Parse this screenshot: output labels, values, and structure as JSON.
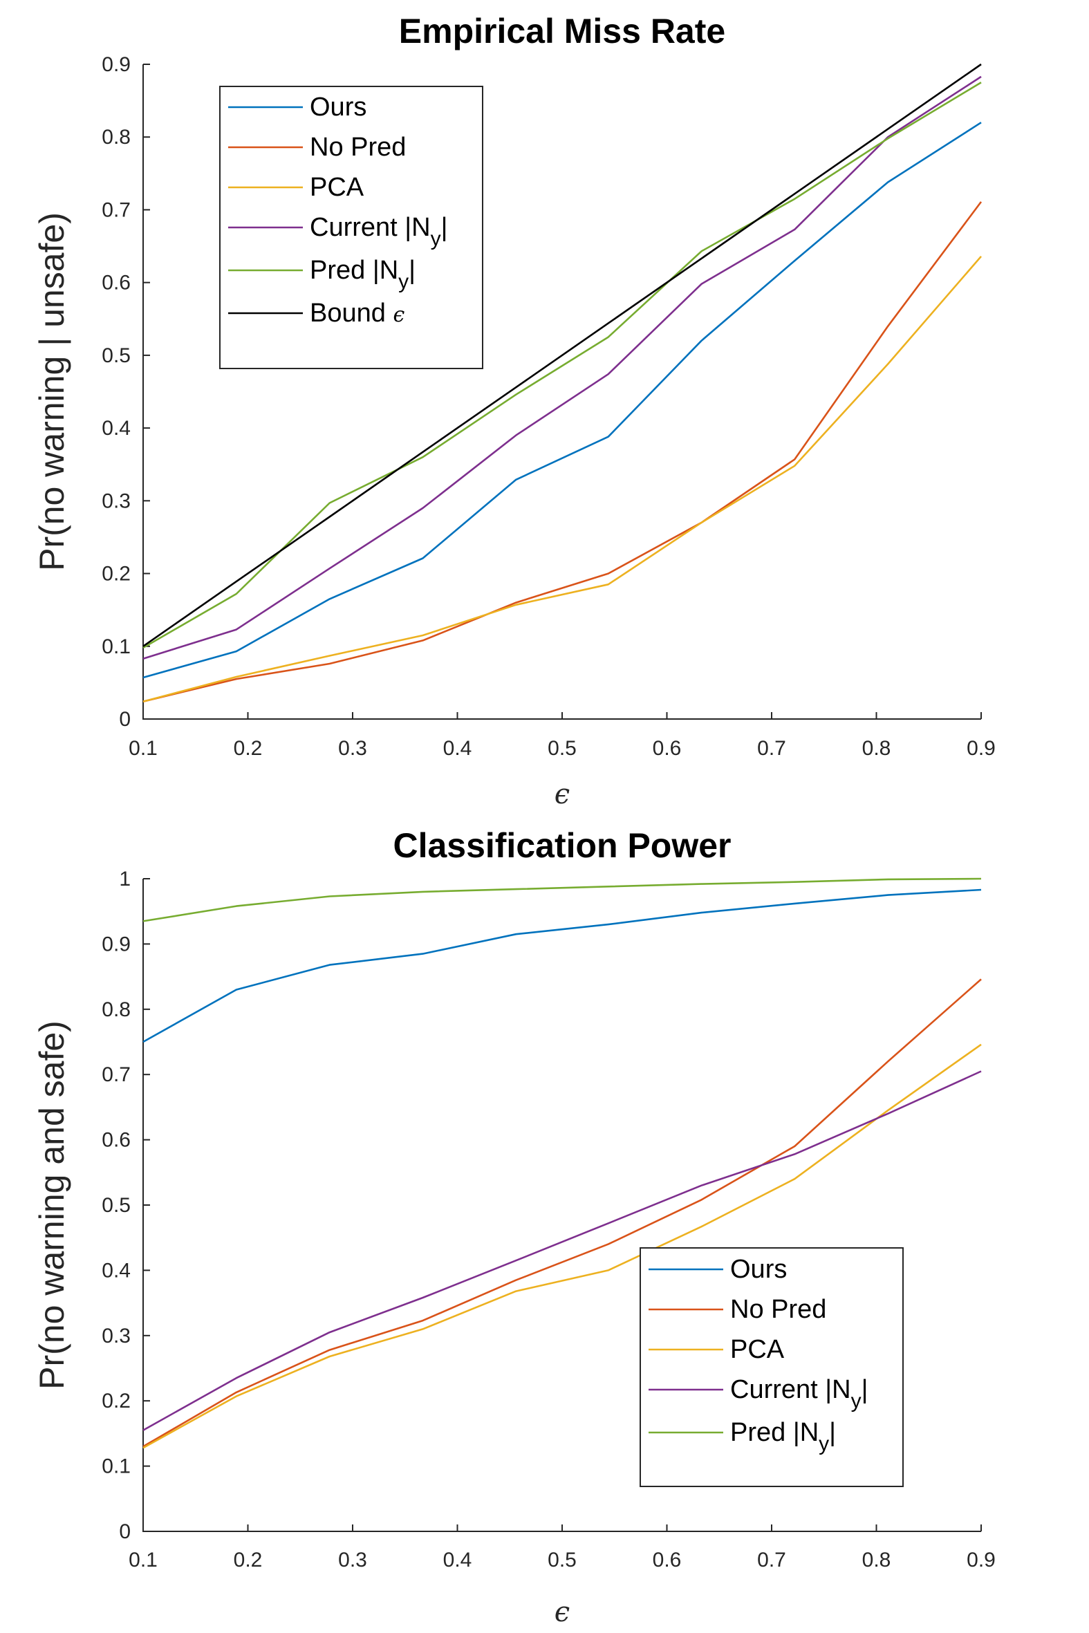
{
  "chart_data": [
    {
      "type": "line",
      "title": "Empirical Miss Rate",
      "xlabel": "ϵ",
      "ylabel": "Pr(no warning | unsafe)",
      "xlim": [
        0.1,
        0.9
      ],
      "ylim": [
        0,
        0.9
      ],
      "xticks": [
        "0.1",
        "0.2",
        "0.3",
        "0.4",
        "0.5",
        "0.6",
        "0.7",
        "0.8",
        "0.9"
      ],
      "yticks": [
        "0",
        "0.1",
        "0.2",
        "0.3",
        "0.4",
        "0.5",
        "0.6",
        "0.7",
        "0.8",
        "0.9"
      ],
      "legend_position": "top-left",
      "x": [
        0.1,
        0.189,
        0.278,
        0.367,
        0.456,
        0.544,
        0.633,
        0.722,
        0.811,
        0.9
      ],
      "series": [
        {
          "name": "Ours",
          "legend": {
            "main": "Ours"
          },
          "color": "#0072BD",
          "values": [
            0.057,
            0.093,
            0.165,
            0.221,
            0.329,
            0.388,
            0.52,
            0.63,
            0.738,
            0.82
          ]
        },
        {
          "name": "No Pred",
          "legend": {
            "main": "No Pred"
          },
          "color": "#D95319",
          "values": [
            0.024,
            0.055,
            0.076,
            0.108,
            0.16,
            0.2,
            0.27,
            0.357,
            0.54,
            0.711
          ]
        },
        {
          "name": "PCA",
          "legend": {
            "main": "PCA"
          },
          "color": "#EDB120",
          "values": [
            0.024,
            0.058,
            0.087,
            0.115,
            0.157,
            0.185,
            0.27,
            0.348,
            0.488,
            0.636
          ]
        },
        {
          "name": "Current |Ny|",
          "legend": {
            "main": "Current |N",
            "sub": "y",
            "end": "|"
          },
          "color": "#7E2F8E",
          "values": [
            0.083,
            0.123,
            0.207,
            0.29,
            0.39,
            0.474,
            0.598,
            0.673,
            0.8,
            0.883
          ]
        },
        {
          "name": "Pred |Ny|",
          "legend": {
            "main": "Pred |N",
            "sub": "y",
            "end": "|"
          },
          "color": "#77AC30",
          "values": [
            0.098,
            0.172,
            0.297,
            0.36,
            0.446,
            0.525,
            0.643,
            0.715,
            0.798,
            0.875
          ]
        },
        {
          "name": "Bound ϵ",
          "legend": {
            "main": "Bound ",
            "italic": "ϵ"
          },
          "color": "#000000",
          "values": [
            0.1,
            0.189,
            0.278,
            0.367,
            0.456,
            0.544,
            0.633,
            0.722,
            0.811,
            0.9
          ]
        }
      ]
    },
    {
      "type": "line",
      "title": "Classification Power",
      "xlabel": "ϵ",
      "ylabel": "Pr(no warning and safe)",
      "xlim": [
        0.1,
        0.9
      ],
      "ylim": [
        0,
        1
      ],
      "xticks": [
        "0.1",
        "0.2",
        "0.3",
        "0.4",
        "0.5",
        "0.6",
        "0.7",
        "0.8",
        "0.9"
      ],
      "yticks": [
        "0",
        "0.1",
        "0.2",
        "0.3",
        "0.4",
        "0.5",
        "0.6",
        "0.7",
        "0.8",
        "0.9",
        "1"
      ],
      "legend_position": "lower-right",
      "x": [
        0.1,
        0.189,
        0.278,
        0.367,
        0.456,
        0.544,
        0.633,
        0.722,
        0.811,
        0.9
      ],
      "series": [
        {
          "name": "Ours",
          "legend": {
            "main": "Ours"
          },
          "color": "#0072BD",
          "values": [
            0.75,
            0.83,
            0.868,
            0.885,
            0.915,
            0.93,
            0.948,
            0.962,
            0.975,
            0.983
          ]
        },
        {
          "name": "No Pred",
          "legend": {
            "main": "No Pred"
          },
          "color": "#D95319",
          "values": [
            0.13,
            0.213,
            0.278,
            0.323,
            0.385,
            0.44,
            0.508,
            0.59,
            0.72,
            0.846
          ]
        },
        {
          "name": "PCA",
          "legend": {
            "main": "PCA"
          },
          "color": "#EDB120",
          "values": [
            0.128,
            0.207,
            0.268,
            0.31,
            0.368,
            0.4,
            0.467,
            0.54,
            0.645,
            0.746
          ]
        },
        {
          "name": "Current |Ny|",
          "legend": {
            "main": "Current |N",
            "sub": "y",
            "end": "|"
          },
          "color": "#7E2F8E",
          "values": [
            0.155,
            0.235,
            0.305,
            0.358,
            0.415,
            0.472,
            0.53,
            0.578,
            0.64,
            0.705
          ]
        },
        {
          "name": "Pred |Ny|",
          "legend": {
            "main": "Pred |N",
            "sub": "y",
            "end": "|"
          },
          "color": "#77AC30",
          "values": [
            0.935,
            0.958,
            0.973,
            0.98,
            0.984,
            0.988,
            0.992,
            0.995,
            0.999,
            1.0
          ]
        }
      ]
    }
  ]
}
